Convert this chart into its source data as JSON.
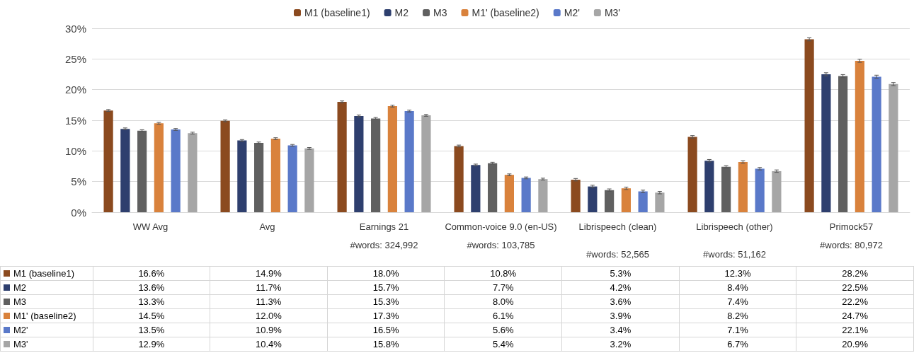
{
  "chart_data": {
    "type": "bar",
    "categories": [
      "WW Avg",
      "Avg",
      "Earnings 21\n\n#words: 324,992",
      "Common-voice 9.0 (en-US)\n\n#words: 103,785",
      "Librispeech (clean)\n\n\n#words: 52,565",
      "Librispeech (other)\n\n\n#words: 51,162",
      "Primock57\n\n#words: 80,972"
    ],
    "series": [
      {
        "name": "M1 (baseline1)",
        "color": "#8b4a1f",
        "values": [
          16.6,
          14.9,
          18.0,
          10.8,
          5.3,
          12.3,
          28.2
        ],
        "value_labels": [
          "16.6%",
          "14.9%",
          "18.0%",
          "10.8%",
          "5.3%",
          "12.3%",
          "28.2%"
        ],
        "errors": [
          0.15,
          0.15,
          0.15,
          0.15,
          0.2,
          0.2,
          0.25
        ]
      },
      {
        "name": "M2",
        "color": "#2e3f6e",
        "values": [
          13.6,
          11.7,
          15.7,
          7.7,
          4.2,
          8.4,
          22.5
        ],
        "value_labels": [
          "13.6%",
          "11.7%",
          "15.7%",
          "7.7%",
          "4.2%",
          "8.4%",
          "22.5%"
        ],
        "errors": [
          0.15,
          0.15,
          0.15,
          0.15,
          0.2,
          0.2,
          0.25
        ]
      },
      {
        "name": "M3",
        "color": "#606060",
        "values": [
          13.3,
          11.3,
          15.3,
          8.0,
          3.6,
          7.4,
          22.2
        ],
        "value_labels": [
          "13.3%",
          "11.3%",
          "15.3%",
          "8.0%",
          "3.6%",
          "7.4%",
          "22.2%"
        ],
        "errors": [
          0.15,
          0.15,
          0.15,
          0.15,
          0.2,
          0.2,
          0.25
        ]
      },
      {
        "name": "M1' (baseline2)",
        "color": "#d9823c",
        "values": [
          14.5,
          12.0,
          17.3,
          6.1,
          3.9,
          8.2,
          24.7
        ],
        "value_labels": [
          "14.5%",
          "12.0%",
          "17.3%",
          "6.1%",
          "3.9%",
          "8.2%",
          "24.7%"
        ],
        "errors": [
          0.15,
          0.15,
          0.15,
          0.15,
          0.2,
          0.2,
          0.25
        ]
      },
      {
        "name": "M2'",
        "color": "#5a79c9",
        "values": [
          13.5,
          10.9,
          16.5,
          5.6,
          3.4,
          7.1,
          22.1
        ],
        "value_labels": [
          "13.5%",
          "10.9%",
          "16.5%",
          "5.6%",
          "3.4%",
          "7.1%",
          "22.1%"
        ],
        "errors": [
          0.15,
          0.15,
          0.15,
          0.15,
          0.2,
          0.2,
          0.25
        ]
      },
      {
        "name": "M3'",
        "color": "#a6a6a6",
        "values": [
          12.9,
          10.4,
          15.8,
          5.4,
          3.2,
          6.7,
          20.9
        ],
        "value_labels": [
          "12.9%",
          "10.4%",
          "15.8%",
          "5.4%",
          "3.2%",
          "6.7%",
          "20.9%"
        ],
        "errors": [
          0.15,
          0.15,
          0.15,
          0.15,
          0.2,
          0.2,
          0.25
        ]
      }
    ],
    "ylim": [
      0,
      30
    ],
    "yticks": [
      {
        "value": 0,
        "label": "0%"
      },
      {
        "value": 5,
        "label": "5%"
      },
      {
        "value": 10,
        "label": "10%"
      },
      {
        "value": 15,
        "label": "15%"
      },
      {
        "value": 20,
        "label": "20%"
      },
      {
        "value": 25,
        "label": "25%"
      },
      {
        "value": 30,
        "label": "30%"
      }
    ],
    "grid": "y",
    "legend": "top"
  }
}
